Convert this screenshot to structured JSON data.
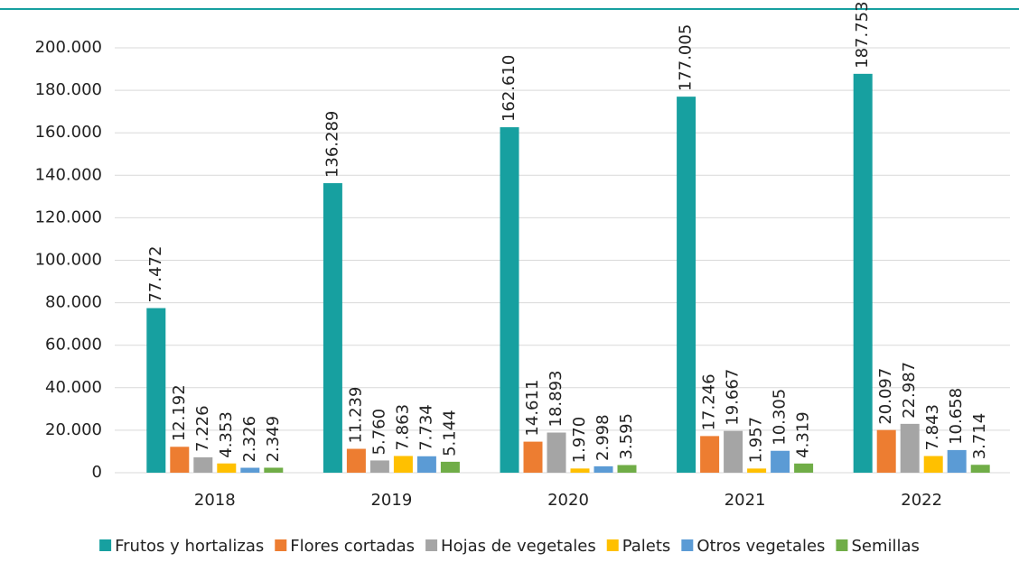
{
  "chart_data": {
    "type": "bar",
    "categories": [
      "2018",
      "2019",
      "2020",
      "2021",
      "2022"
    ],
    "series": [
      {
        "name": "Frutos y hortalizas",
        "color": "#17a0a0",
        "values": [
          77472,
          136289,
          162610,
          177005,
          187753
        ],
        "value_labels": [
          "77.472",
          "136.289",
          "162.610",
          "177.005",
          "187.753"
        ]
      },
      {
        "name": "Flores cortadas",
        "color": "#ed7d31",
        "values": [
          12192,
          11239,
          14611,
          17246,
          20097
        ],
        "value_labels": [
          "12.192",
          "11.239",
          "14.611",
          "17.246",
          "20.097"
        ]
      },
      {
        "name": "Hojas de vegetales",
        "color": "#a5a5a5",
        "values": [
          7226,
          5760,
          18893,
          19667,
          22987
        ],
        "value_labels": [
          "7.226",
          "5.760",
          "18.893",
          "19.667",
          "22.987"
        ]
      },
      {
        "name": "Palets",
        "color": "#ffc000",
        "values": [
          4353,
          7863,
          1970,
          1957,
          7843
        ],
        "value_labels": [
          "4.353",
          "7.863",
          "1.970",
          "1.957",
          "7.843"
        ]
      },
      {
        "name": "Otros vegetales",
        "color": "#5b9bd5",
        "values": [
          2326,
          7734,
          2998,
          10305,
          10658
        ],
        "value_labels": [
          "2.326",
          "7.734",
          "2.998",
          "10.305",
          "10.658"
        ]
      },
      {
        "name": "Semillas",
        "color": "#70ad47",
        "values": [
          2349,
          5144,
          3595,
          4319,
          3714
        ],
        "value_labels": [
          "2.349",
          "5.144",
          "3.595",
          "4.319",
          "3.714"
        ]
      }
    ],
    "ylim": [
      0,
      200000
    ],
    "yticks": [
      0,
      {
        "value": 20000,
        "label": "20.000"
      },
      {
        "value": 40000,
        "label": "40.000"
      },
      {
        "value": 60000,
        "label": "60.000"
      },
      {
        "value": 80000,
        "label": "80.000"
      },
      {
        "value": 100000,
        "label": "100.000"
      },
      {
        "value": 120000,
        "label": "120.000"
      },
      {
        "value": 140000,
        "label": "140.000"
      },
      {
        "value": 160000,
        "label": "160.000"
      },
      {
        "value": 180000,
        "label": "180.000"
      },
      {
        "value": 200000,
        "label": "200.000"
      }
    ],
    "grid": true,
    "legend": "bottom"
  }
}
